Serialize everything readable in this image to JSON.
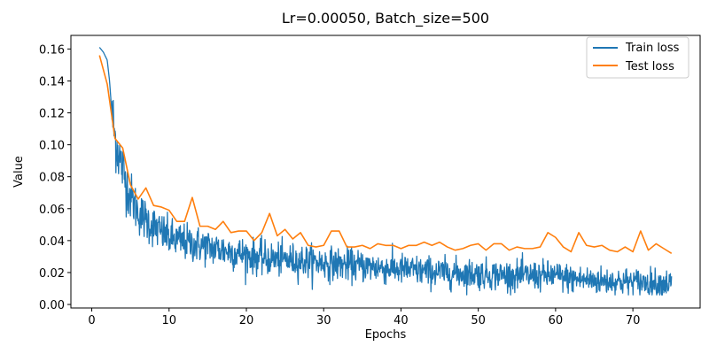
{
  "chart_data": {
    "type": "line",
    "title": "Lr=0.00050, Batch_size=500",
    "xlabel": "Epochs",
    "ylabel": "Value",
    "xlim": [
      -2.7,
      78.7
    ],
    "ylim": [
      -0.0022,
      0.1685
    ],
    "xticks": [
      0,
      10,
      20,
      30,
      40,
      50,
      60,
      70
    ],
    "yticks": [
      0.0,
      0.02,
      0.04,
      0.06,
      0.08,
      0.1,
      0.12,
      0.14,
      0.16
    ],
    "ytick_labels": [
      "0.00",
      "0.02",
      "0.04",
      "0.06",
      "0.08",
      "0.10",
      "0.12",
      "0.14",
      "0.16"
    ],
    "grid": false,
    "legend_position": "top-right",
    "series": [
      {
        "name": "Train loss",
        "color": "#1f77b4",
        "style": "noisy",
        "x": [
          1.0,
          1.5,
          2.0,
          2.3,
          2.6,
          3.0,
          3.5,
          4.0,
          4.5,
          5.0,
          6.0,
          7.0,
          8.0,
          9.0,
          10.0,
          11.0,
          12.0,
          14.0,
          16.0,
          18.0,
          20.0,
          22.0,
          25.0,
          28.0,
          30.0,
          35.0,
          40.0,
          45.0,
          50.0,
          55.0,
          60.0,
          62.0,
          65.0,
          70.0,
          75.0
        ],
        "y": [
          0.161,
          0.158,
          0.153,
          0.14,
          0.12,
          0.105,
          0.094,
          0.085,
          0.075,
          0.068,
          0.058,
          0.053,
          0.049,
          0.045,
          0.042,
          0.04,
          0.039,
          0.037,
          0.035,
          0.033,
          0.031,
          0.029,
          0.028,
          0.027,
          0.026,
          0.024,
          0.022,
          0.02,
          0.019,
          0.018,
          0.018,
          0.016,
          0.015,
          0.014,
          0.013
        ]
      },
      {
        "name": "Test loss",
        "color": "#ff7f0e",
        "style": "line",
        "x": [
          1,
          2,
          3,
          4,
          5,
          6,
          7,
          8,
          9,
          10,
          11,
          12,
          13,
          14,
          15,
          16,
          17,
          18,
          19,
          20,
          21,
          22,
          23,
          24,
          25,
          26,
          27,
          28,
          29,
          30,
          31,
          32,
          33,
          34,
          35,
          36,
          37,
          38,
          39,
          40,
          41,
          42,
          43,
          44,
          45,
          46,
          47,
          48,
          49,
          50,
          51,
          52,
          53,
          54,
          55,
          56,
          57,
          58,
          59,
          60,
          61,
          62,
          63,
          64,
          65,
          66,
          67,
          68,
          69,
          70,
          71,
          72,
          73,
          74,
          75
        ],
        "y": [
          0.156,
          0.138,
          0.104,
          0.098,
          0.075,
          0.066,
          0.073,
          0.062,
          0.061,
          0.059,
          0.052,
          0.052,
          0.067,
          0.049,
          0.049,
          0.047,
          0.052,
          0.045,
          0.046,
          0.046,
          0.04,
          0.045,
          0.057,
          0.043,
          0.047,
          0.041,
          0.045,
          0.037,
          0.036,
          0.037,
          0.046,
          0.046,
          0.036,
          0.036,
          0.037,
          0.035,
          0.038,
          0.037,
          0.037,
          0.035,
          0.037,
          0.037,
          0.039,
          0.037,
          0.039,
          0.036,
          0.034,
          0.035,
          0.037,
          0.038,
          0.034,
          0.038,
          0.038,
          0.034,
          0.036,
          0.035,
          0.035,
          0.036,
          0.045,
          0.042,
          0.036,
          0.033,
          0.045,
          0.037,
          0.036,
          0.037,
          0.034,
          0.033,
          0.036,
          0.033,
          0.046,
          0.034,
          0.038,
          0.035,
          0.032
        ]
      }
    ]
  }
}
